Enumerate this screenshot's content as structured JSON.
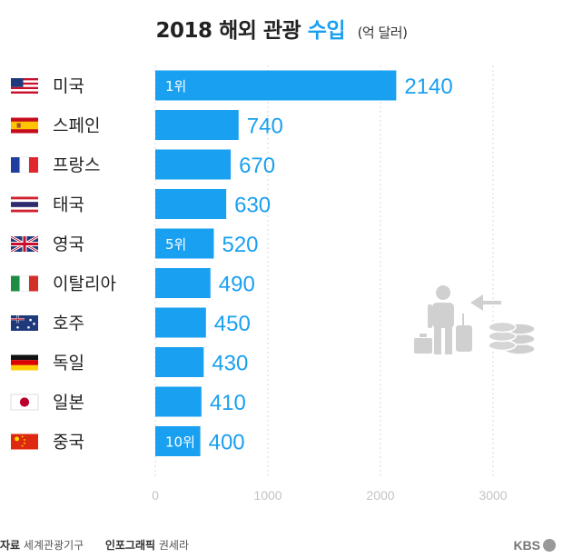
{
  "title": {
    "main": "2018 해외 관광",
    "accent": "수입",
    "unit": "(억 달러)"
  },
  "chart_data": {
    "type": "bar",
    "orientation": "horizontal",
    "categories": [
      "미국",
      "스페인",
      "프랑스",
      "태국",
      "영국",
      "이탈리아",
      "호주",
      "독일",
      "일본",
      "중국"
    ],
    "values": [
      2140,
      740,
      670,
      630,
      520,
      490,
      450,
      430,
      410,
      400
    ],
    "rank_labels": [
      "1위",
      "",
      "",
      "",
      "5위",
      "",
      "",
      "",
      "",
      "10위"
    ],
    "flags": [
      "us-flag-icon",
      "spain-flag-icon",
      "france-flag-icon",
      "thailand-flag-icon",
      "uk-flag-icon",
      "italy-flag-icon",
      "australia-flag-icon",
      "germany-flag-icon",
      "japan-flag-icon",
      "china-flag-icon"
    ],
    "xlim": [
      0,
      3000
    ],
    "xticks": [
      "0",
      "1000",
      "2000",
      "3000"
    ],
    "grid": true,
    "bar_color": "#1aa0f0",
    "value_color": "#1aa0f0"
  },
  "footer": {
    "source_label": "자료",
    "source_value": "세계관광기구",
    "infographic_label": "인포그래픽",
    "infographic_value": "권세라",
    "brand": "KBS"
  },
  "illustration": "traveler-money-icon"
}
